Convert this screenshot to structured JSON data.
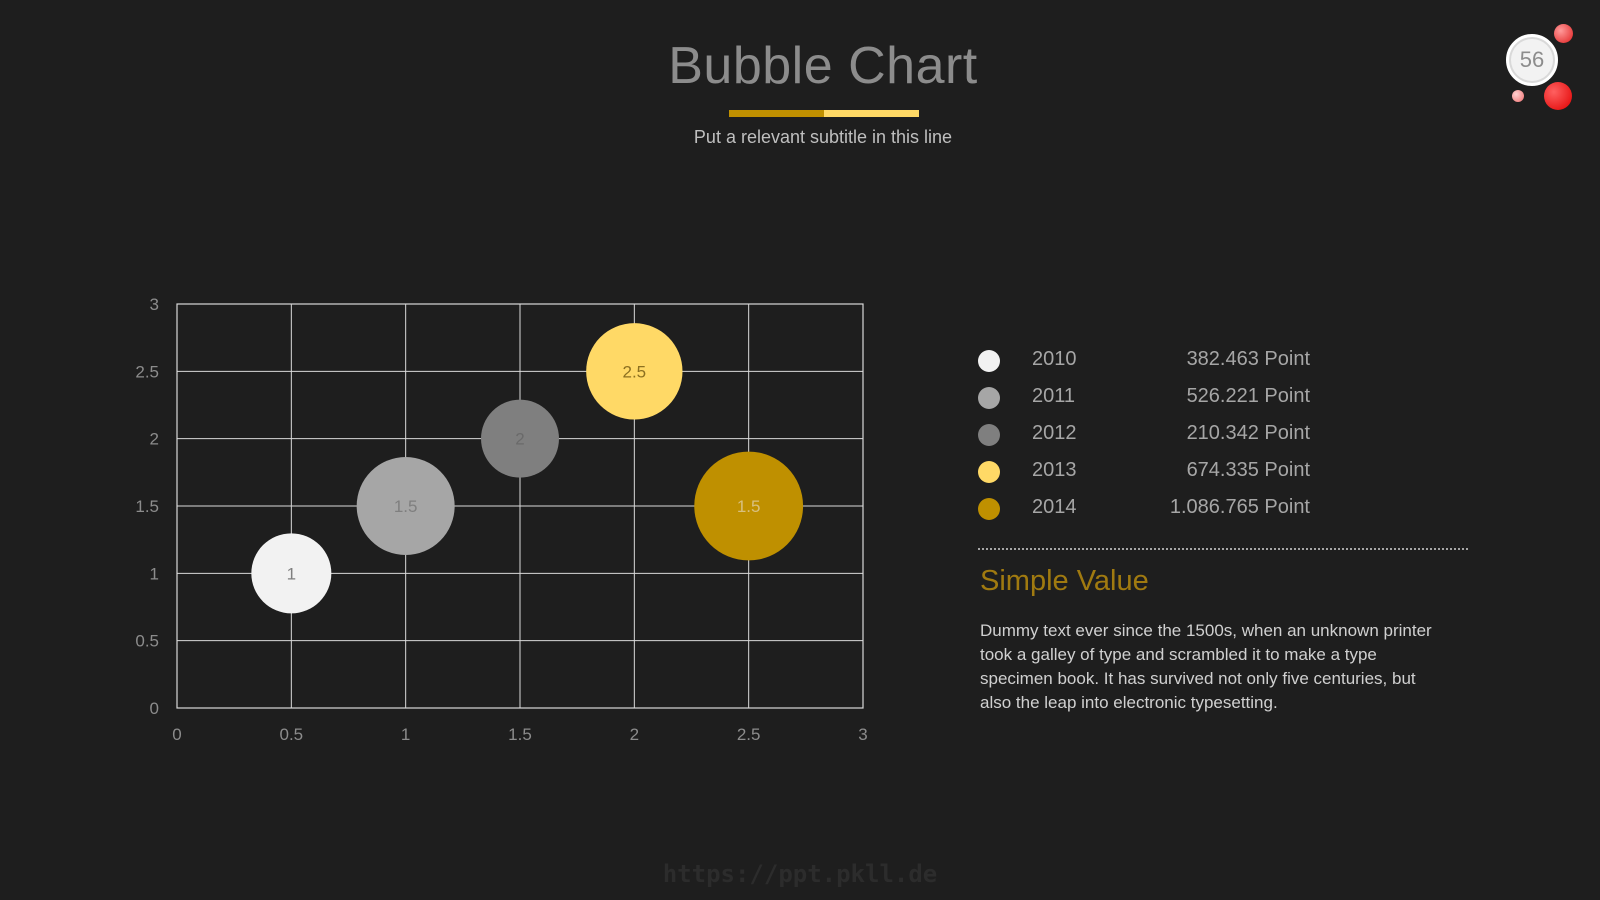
{
  "header": {
    "title": "Bubble Chart",
    "subtitle": "Put a relevant subtitle in this line",
    "accent_colors": [
      "#c09000",
      "#ffd966"
    ]
  },
  "page_badge": {
    "number": "56"
  },
  "chart_data": {
    "type": "scatter",
    "subtype": "bubble",
    "title": "",
    "xlabel": "",
    "ylabel": "",
    "xlim": [
      0,
      3
    ],
    "ylim": [
      0,
      3
    ],
    "x_ticks": [
      "0",
      "0.5",
      "1",
      "1.5",
      "2",
      "2.5",
      "3"
    ],
    "y_ticks": [
      "0",
      "0.5",
      "1",
      "1.5",
      "2",
      "2.5",
      "3"
    ],
    "grid": true,
    "points": [
      {
        "x": 0.5,
        "y": 1.0,
        "size": 1.0,
        "label": "1",
        "color": "#f2f2f2",
        "label_color": "#7f7f7f"
      },
      {
        "x": 1.0,
        "y": 1.5,
        "size": 1.5,
        "label": "1.5",
        "color": "#a6a6a6",
        "label_color": "#7f7f7f"
      },
      {
        "x": 1.5,
        "y": 2.0,
        "size": 0.95,
        "label": "2",
        "color": "#7f7f7f",
        "label_color": "#6a6a6a"
      },
      {
        "x": 2.0,
        "y": 2.5,
        "size": 1.45,
        "label": "2.5",
        "color": "#ffd966",
        "label_color": "#8c7020"
      },
      {
        "x": 2.5,
        "y": 1.5,
        "size": 1.85,
        "label": "1.5",
        "color": "#bf9000",
        "label_color": "#d8c080"
      }
    ]
  },
  "legend": {
    "items": [
      {
        "year": "2010",
        "value": "382.463 Point",
        "color": "#f2f2f2"
      },
      {
        "year": "2011",
        "value": "526.221 Point",
        "color": "#a6a6a6"
      },
      {
        "year": "2012",
        "value": "210.342 Point",
        "color": "#7f7f7f"
      },
      {
        "year": "2013",
        "value": "674.335 Point",
        "color": "#ffd966"
      },
      {
        "year": "2014",
        "value": "1.086.765 Point",
        "color": "#bf9000"
      }
    ]
  },
  "section": {
    "heading": "Simple Value",
    "body": "Dummy text ever since the 1500s, when an unknown printer took a galley of type and scrambled it to make a type specimen book. It has survived not only five centuries, but also the leap into electronic typesetting."
  },
  "watermark": "https://ppt.pkll.de"
}
